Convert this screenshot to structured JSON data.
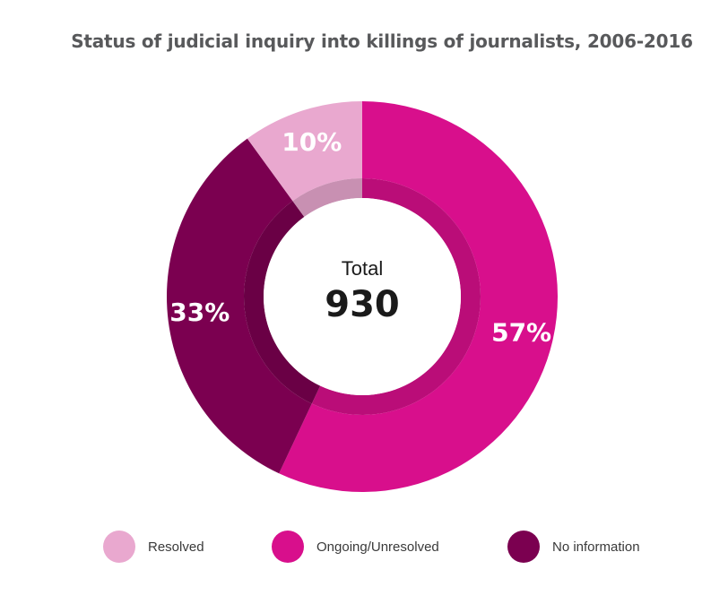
{
  "chart_data": {
    "type": "pie",
    "variant": "donut",
    "title": "Status of judicial inquiry into killings of journalists, 2006-2016",
    "center": {
      "caption": "Total",
      "value": "930"
    },
    "slices": [
      {
        "name": "Resolved",
        "value": 10,
        "label": "10%",
        "color": "#e9a8cf"
      },
      {
        "name": "Ongoing/Unresolved",
        "value": 57,
        "label": "57%",
        "color": "#d80f8c"
      },
      {
        "name": "No information",
        "value": 33,
        "label": "33%",
        "color": "#7b0050"
      }
    ],
    "legend": {
      "position": "bottom",
      "entries": [
        "Resolved",
        "Ongoing/Unresolved",
        "No information"
      ]
    }
  }
}
